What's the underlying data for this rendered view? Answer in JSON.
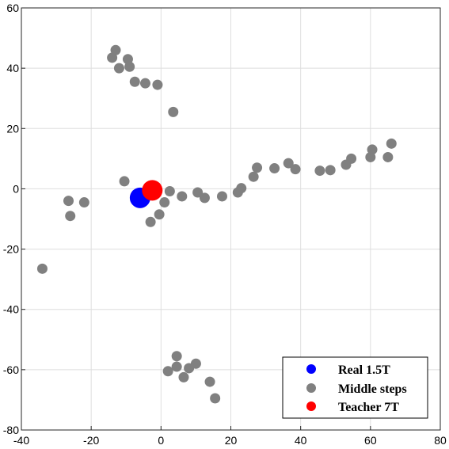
{
  "chart_data": {
    "type": "scatter",
    "title": "",
    "xlabel": "",
    "ylabel": "",
    "xlim": [
      -40,
      80
    ],
    "ylim": [
      -80,
      60
    ],
    "xticks": [
      -40,
      -20,
      0,
      20,
      40,
      60,
      80
    ],
    "yticks": [
      -80,
      -60,
      -40,
      -20,
      0,
      20,
      40,
      60
    ],
    "grid": true,
    "legend_position": "bottom-right",
    "series": [
      {
        "name": "Middle steps",
        "color": "#808080",
        "marker_size": "medium",
        "points": [
          [
            -14,
            43.5
          ],
          [
            -13,
            46
          ],
          [
            -12,
            40
          ],
          [
            -9.5,
            43
          ],
          [
            -9,
            40.5
          ],
          [
            -7.5,
            35.5
          ],
          [
            -4.5,
            35
          ],
          [
            -1,
            34.5
          ],
          [
            3.5,
            25.5
          ],
          [
            -10.5,
            2.5
          ],
          [
            2.5,
            -0.8
          ],
          [
            1,
            -4.5
          ],
          [
            -0.5,
            -8.5
          ],
          [
            -3,
            -11
          ],
          [
            6,
            -2.5
          ],
          [
            10.5,
            -1.2
          ],
          [
            12.5,
            -3
          ],
          [
            17.5,
            -2.5
          ],
          [
            22,
            -1.2
          ],
          [
            23,
            0.2
          ],
          [
            26.5,
            4
          ],
          [
            27.5,
            7
          ],
          [
            32.5,
            6.8
          ],
          [
            36.5,
            8.5
          ],
          [
            38.5,
            6.5
          ],
          [
            45.5,
            6
          ],
          [
            48.5,
            6.2
          ],
          [
            53,
            8
          ],
          [
            54.5,
            10
          ],
          [
            60,
            10.5
          ],
          [
            60.5,
            13
          ],
          [
            65,
            10.5
          ],
          [
            66,
            15
          ],
          [
            -26.5,
            -4
          ],
          [
            -26,
            -9
          ],
          [
            -22,
            -4.5
          ],
          [
            -34,
            -26.5
          ],
          [
            4.5,
            -55.5
          ],
          [
            4.5,
            -59
          ],
          [
            2,
            -60.5
          ],
          [
            6.5,
            -62.5
          ],
          [
            8,
            -59.5
          ],
          [
            10,
            -58
          ],
          [
            14,
            -64
          ],
          [
            15.5,
            -69.5
          ]
        ]
      },
      {
        "name": "Real 1.5T",
        "color": "#0000ff",
        "marker_size": "large",
        "points": [
          [
            -6,
            -3
          ]
        ]
      },
      {
        "name": "Teacher 7T",
        "color": "#ff0000",
        "marker_size": "large",
        "points": [
          [
            -2.5,
            -0.5
          ]
        ]
      }
    ],
    "legend": [
      {
        "label": "Real 1.5T",
        "color": "#0000ff"
      },
      {
        "label": "Middle steps",
        "color": "#808080"
      },
      {
        "label": "Teacher 7T",
        "color": "#ff0000"
      }
    ]
  }
}
